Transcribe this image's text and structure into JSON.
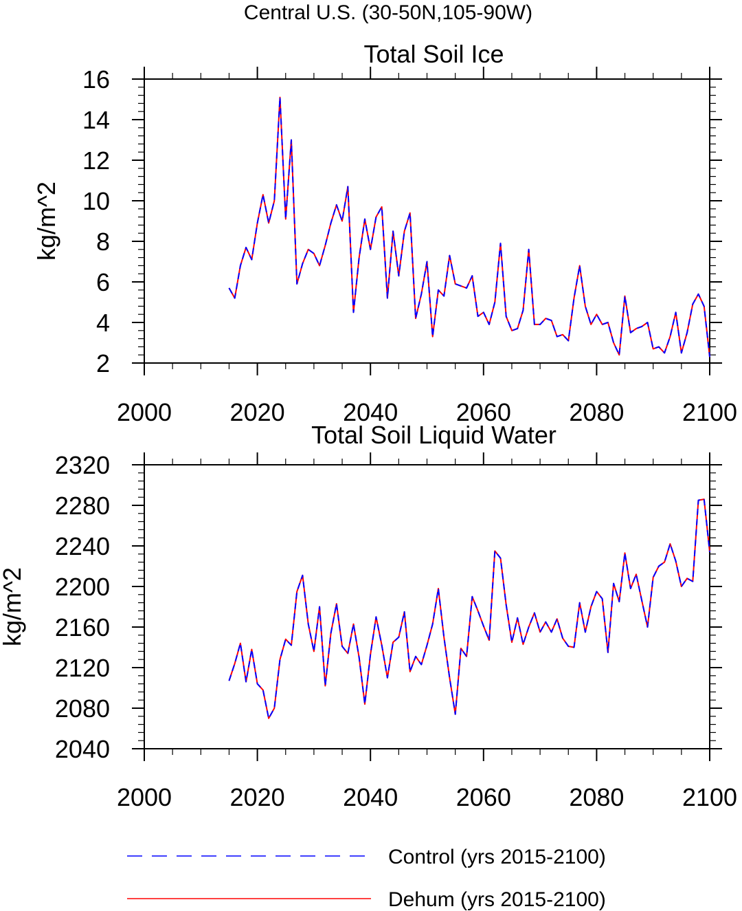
{
  "figure_title": "Central U.S. (30-50N,105-90W)",
  "legend": [
    {
      "label": "Control (yrs 2015-2100)",
      "color": "#0000ff",
      "style": "dashed"
    },
    {
      "label": "Dehum (yrs 2015-2100)",
      "color": "#ff0000",
      "style": "solid"
    }
  ],
  "chart_data": [
    {
      "type": "line",
      "title": "Total Soil Ice",
      "xlabel": "",
      "ylabel": "kg/m^2",
      "xlim": [
        2000,
        2100
      ],
      "ylim": [
        2,
        16
      ],
      "x_ticks": [
        2000,
        2020,
        2040,
        2060,
        2080,
        2100
      ],
      "y_ticks": [
        2,
        4,
        6,
        8,
        10,
        12,
        14,
        16
      ],
      "x": [
        2015,
        2016,
        2017,
        2018,
        2019,
        2020,
        2021,
        2022,
        2023,
        2024,
        2025,
        2026,
        2027,
        2028,
        2029,
        2030,
        2031,
        2032,
        2033,
        2034,
        2035,
        2036,
        2037,
        2038,
        2039,
        2040,
        2041,
        2042,
        2043,
        2044,
        2045,
        2046,
        2047,
        2048,
        2049,
        2050,
        2051,
        2052,
        2053,
        2054,
        2055,
        2056,
        2057,
        2058,
        2059,
        2060,
        2061,
        2062,
        2063,
        2064,
        2065,
        2066,
        2067,
        2068,
        2069,
        2070,
        2071,
        2072,
        2073,
        2074,
        2075,
        2076,
        2077,
        2078,
        2079,
        2080,
        2081,
        2082,
        2083,
        2084,
        2085,
        2086,
        2087,
        2088,
        2089,
        2090,
        2091,
        2092,
        2093,
        2094,
        2095,
        2096,
        2097,
        2098,
        2099,
        2100
      ],
      "series": [
        {
          "name": "Control (yrs 2015-2100)",
          "color": "#0000ff",
          "values": [
            5.7,
            5.2,
            6.8,
            7.7,
            7.1,
            8.9,
            10.3,
            8.9,
            10.0,
            15.1,
            9.1,
            13.0,
            5.9,
            6.9,
            7.6,
            7.4,
            6.8,
            7.8,
            8.9,
            9.8,
            9.0,
            10.7,
            4.5,
            7.2,
            9.1,
            7.6,
            9.2,
            9.7,
            5.2,
            8.5,
            6.3,
            8.5,
            9.4,
            4.2,
            5.4,
            7.0,
            3.3,
            5.6,
            5.3,
            7.3,
            5.9,
            5.8,
            5.7,
            6.3,
            4.3,
            4.5,
            3.9,
            5.0,
            7.9,
            4.3,
            3.6,
            3.7,
            4.6,
            7.6,
            3.9,
            3.9,
            4.2,
            4.1,
            3.3,
            3.4,
            3.1,
            5.2,
            6.8,
            4.8,
            3.9,
            4.4,
            3.9,
            4.0,
            3.0,
            2.4,
            5.3,
            3.5,
            3.7,
            3.8,
            4.0,
            2.7,
            2.8,
            2.5,
            3.3,
            4.5,
            2.5,
            3.5,
            4.9,
            5.4,
            4.8,
            2.3
          ]
        },
        {
          "name": "Dehum (yrs 2015-2100)",
          "color": "#ff0000",
          "values": [
            5.7,
            5.2,
            6.8,
            7.7,
            7.1,
            8.9,
            10.3,
            8.9,
            10.0,
            15.1,
            9.1,
            13.0,
            5.9,
            6.9,
            7.6,
            7.4,
            6.8,
            7.8,
            8.9,
            9.8,
            9.0,
            10.7,
            4.5,
            7.2,
            9.1,
            7.6,
            9.2,
            9.7,
            5.2,
            8.5,
            6.3,
            8.5,
            9.4,
            4.2,
            5.4,
            7.0,
            3.3,
            5.6,
            5.3,
            7.3,
            5.9,
            5.8,
            5.7,
            6.3,
            4.3,
            4.5,
            3.9,
            5.0,
            7.9,
            4.3,
            3.6,
            3.7,
            4.6,
            7.6,
            3.9,
            3.9,
            4.2,
            4.1,
            3.3,
            3.4,
            3.1,
            5.2,
            6.8,
            4.8,
            3.9,
            4.4,
            3.9,
            4.0,
            3.0,
            2.4,
            5.3,
            3.5,
            3.7,
            3.8,
            4.0,
            2.7,
            2.8,
            2.5,
            3.3,
            4.5,
            2.5,
            3.5,
            4.9,
            5.4,
            4.8,
            2.3
          ]
        }
      ]
    },
    {
      "type": "line",
      "title": "Total Soil Liquid Water",
      "xlabel": "",
      "ylabel": "kg/m^2",
      "xlim": [
        2000,
        2100
      ],
      "ylim": [
        2040,
        2320
      ],
      "x_ticks": [
        2000,
        2020,
        2040,
        2060,
        2080,
        2100
      ],
      "y_ticks": [
        2040,
        2080,
        2120,
        2160,
        2200,
        2240,
        2280,
        2320
      ],
      "x": [
        2015,
        2016,
        2017,
        2018,
        2019,
        2020,
        2021,
        2022,
        2023,
        2024,
        2025,
        2026,
        2027,
        2028,
        2029,
        2030,
        2031,
        2032,
        2033,
        2034,
        2035,
        2036,
        2037,
        2038,
        2039,
        2040,
        2041,
        2042,
        2043,
        2044,
        2045,
        2046,
        2047,
        2048,
        2049,
        2050,
        2051,
        2052,
        2053,
        2054,
        2055,
        2056,
        2057,
        2058,
        2059,
        2060,
        2061,
        2062,
        2063,
        2064,
        2065,
        2066,
        2067,
        2068,
        2069,
        2070,
        2071,
        2072,
        2073,
        2074,
        2075,
        2076,
        2077,
        2078,
        2079,
        2080,
        2081,
        2082,
        2083,
        2084,
        2085,
        2086,
        2087,
        2088,
        2089,
        2090,
        2091,
        2092,
        2093,
        2094,
        2095,
        2096,
        2097,
        2098,
        2099,
        2100
      ],
      "series": [
        {
          "name": "Control (yrs 2015-2100)",
          "color": "#0000ff",
          "values": [
            2107,
            2124,
            2144,
            2106,
            2138,
            2104,
            2098,
            2070,
            2080,
            2128,
            2148,
            2142,
            2195,
            2211,
            2163,
            2136,
            2180,
            2102,
            2154,
            2183,
            2141,
            2134,
            2163,
            2130,
            2084,
            2133,
            2170,
            2142,
            2110,
            2145,
            2150,
            2175,
            2116,
            2131,
            2123,
            2142,
            2163,
            2198,
            2150,
            2110,
            2074,
            2139,
            2131,
            2190,
            2176,
            2161,
            2147,
            2235,
            2228,
            2182,
            2145,
            2169,
            2143,
            2160,
            2174,
            2155,
            2165,
            2155,
            2168,
            2149,
            2141,
            2140,
            2184,
            2155,
            2180,
            2195,
            2188,
            2135,
            2203,
            2185,
            2233,
            2198,
            2212,
            2186,
            2160,
            2209,
            2220,
            2224,
            2242,
            2225,
            2200,
            2208,
            2205,
            2285,
            2286,
            2234
          ]
        },
        {
          "name": "Dehum (yrs 2015-2100)",
          "color": "#ff0000",
          "values": [
            2107,
            2124,
            2144,
            2106,
            2138,
            2104,
            2098,
            2070,
            2080,
            2128,
            2148,
            2142,
            2195,
            2211,
            2163,
            2136,
            2180,
            2102,
            2154,
            2183,
            2141,
            2134,
            2163,
            2130,
            2084,
            2133,
            2170,
            2142,
            2110,
            2145,
            2150,
            2175,
            2116,
            2131,
            2123,
            2142,
            2163,
            2198,
            2150,
            2110,
            2074,
            2139,
            2131,
            2190,
            2176,
            2161,
            2147,
            2235,
            2228,
            2182,
            2145,
            2169,
            2143,
            2160,
            2174,
            2155,
            2165,
            2155,
            2168,
            2149,
            2141,
            2140,
            2184,
            2155,
            2180,
            2195,
            2188,
            2135,
            2203,
            2185,
            2233,
            2198,
            2212,
            2186,
            2160,
            2209,
            2220,
            2224,
            2242,
            2225,
            2200,
            2208,
            2205,
            2285,
            2286,
            2234
          ]
        }
      ]
    }
  ]
}
